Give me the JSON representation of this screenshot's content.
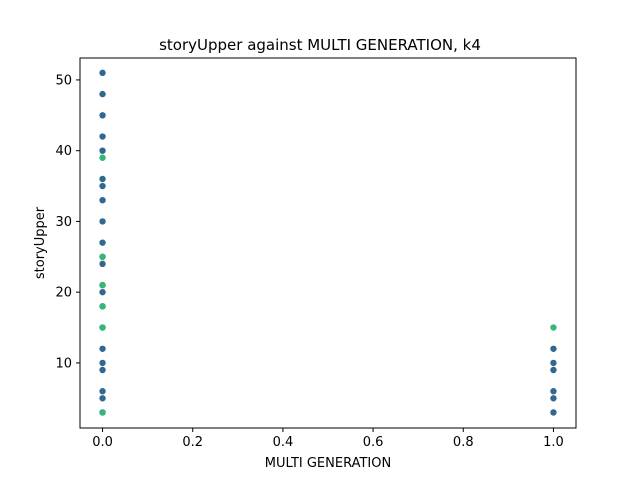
{
  "chart_data": {
    "type": "scatter",
    "title": "storyUpper against MULTI GENERATION, k4",
    "xlabel": "MULTI GENERATION",
    "ylabel": "storyUpper",
    "xlim": [
      -0.05,
      1.05
    ],
    "ylim": [
      0.8,
      53.1
    ],
    "x_ticks": [
      "0.0",
      "0.2",
      "0.4",
      "0.6",
      "0.8",
      "1.0"
    ],
    "x_tick_values": [
      0.0,
      0.2,
      0.4,
      0.6,
      0.8,
      1.0
    ],
    "y_ticks": [
      "10",
      "20",
      "30",
      "40",
      "50"
    ],
    "y_tick_values": [
      10,
      20,
      30,
      40,
      50
    ],
    "grid": false,
    "colors": {
      "blue": "#31688e",
      "green": "#35b779"
    },
    "series": [
      {
        "color": "blue",
        "points": [
          {
            "x": 0,
            "y": 51
          },
          {
            "x": 0,
            "y": 48
          },
          {
            "x": 0,
            "y": 45
          },
          {
            "x": 0,
            "y": 42
          },
          {
            "x": 0,
            "y": 40
          },
          {
            "x": 0,
            "y": 36
          },
          {
            "x": 0,
            "y": 35
          },
          {
            "x": 0,
            "y": 33
          },
          {
            "x": 0,
            "y": 30
          },
          {
            "x": 0,
            "y": 27
          },
          {
            "x": 0,
            "y": 25
          },
          {
            "x": 0,
            "y": 24
          },
          {
            "x": 0,
            "y": 21
          },
          {
            "x": 0,
            "y": 20
          },
          {
            "x": 0,
            "y": 18
          },
          {
            "x": 0,
            "y": 15
          },
          {
            "x": 0,
            "y": 12
          },
          {
            "x": 0,
            "y": 10
          },
          {
            "x": 0,
            "y": 9
          },
          {
            "x": 0,
            "y": 6
          },
          {
            "x": 0,
            "y": 5
          },
          {
            "x": 0,
            "y": 3
          },
          {
            "x": 1,
            "y": 12
          },
          {
            "x": 1,
            "y": 10
          },
          {
            "x": 1,
            "y": 9
          },
          {
            "x": 1,
            "y": 6
          },
          {
            "x": 1,
            "y": 5
          },
          {
            "x": 1,
            "y": 3
          }
        ]
      },
      {
        "color": "green",
        "points": [
          {
            "x": 0,
            "y": 39
          },
          {
            "x": 0,
            "y": 25
          },
          {
            "x": 0,
            "y": 21
          },
          {
            "x": 0,
            "y": 18
          },
          {
            "x": 0,
            "y": 15
          },
          {
            "x": 0,
            "y": 3
          },
          {
            "x": 1,
            "y": 15
          }
        ]
      }
    ]
  }
}
